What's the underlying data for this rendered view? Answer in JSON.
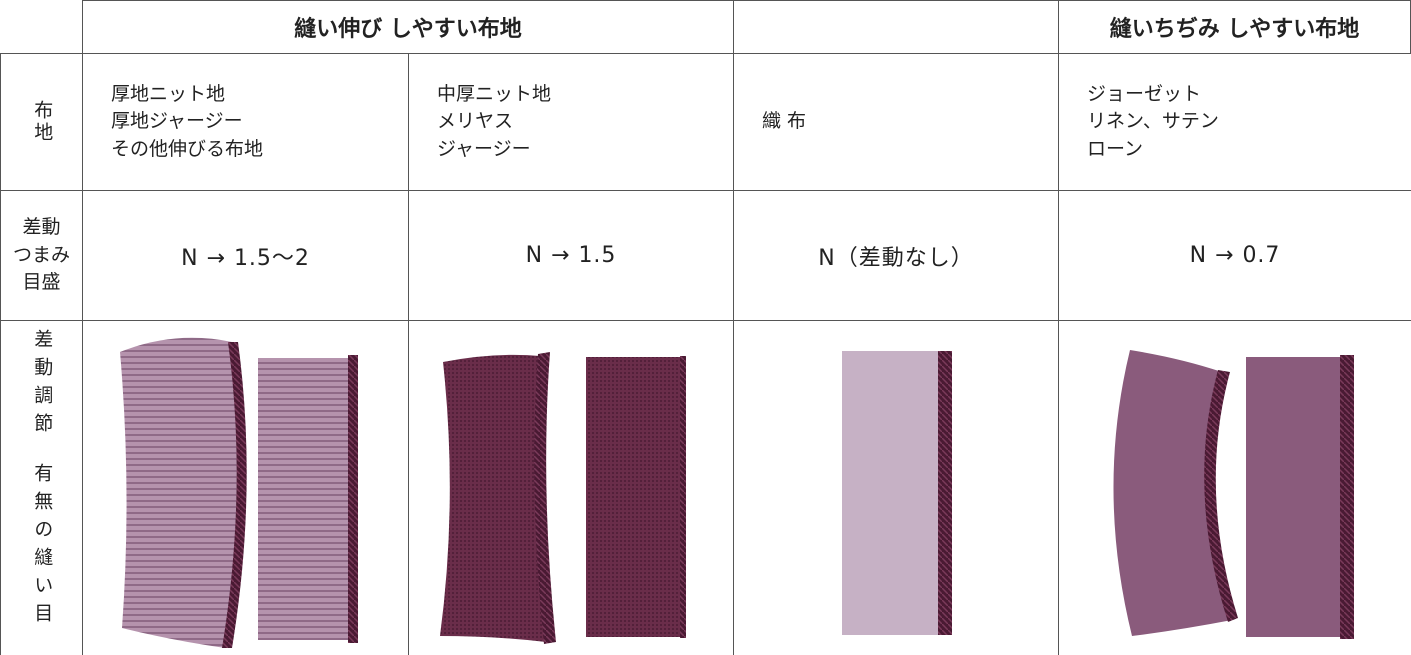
{
  "table": {
    "headers": {
      "stretch": "縫い伸び しやすい布地",
      "shrink": "縫いちぢみ しやすい布地"
    },
    "row_labels": {
      "fabric": "布地",
      "dial": [
        "差動",
        "つまみ",
        "目盛"
      ],
      "seam": [
        "差動調節",
        "有無の縫い目"
      ]
    },
    "fabrics": [
      [
        "厚地ニット地",
        "厚地ジャージー",
        "その他伸びる布地"
      ],
      [
        "中厚ニット地",
        "メリヤス",
        "ジャージー"
      ],
      [
        "織 布"
      ],
      [
        "ジョーゼット",
        "リネン、サテン",
        "ローン"
      ]
    ],
    "dial_settings": [
      "N → 1.5～2",
      "N → 1.5",
      "N（差動なし）",
      "N → 0.7"
    ]
  }
}
